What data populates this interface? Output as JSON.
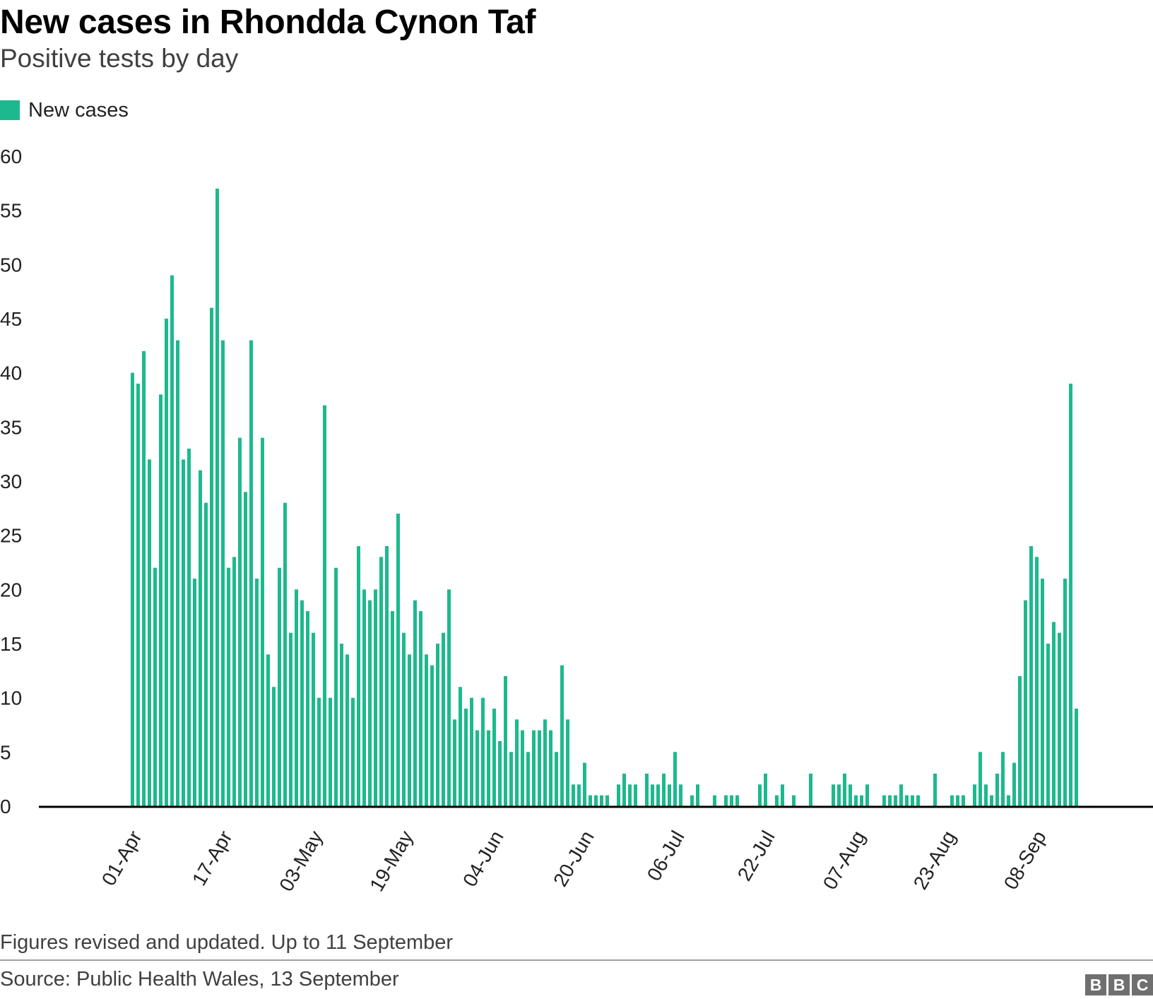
{
  "title": "New cases in Rhondda Cynon Taf",
  "subtitle": "Positive tests by day",
  "note": "Figures revised and updated. Up to 11 September",
  "source": "Source: Public Health Wales, 13 September",
  "logo": [
    "B",
    "B",
    "C"
  ],
  "colors": {
    "bar": "#1db98d",
    "axis": "#000000",
    "text": "#222222"
  },
  "chart_data": {
    "type": "bar",
    "series": [
      {
        "name": "New cases",
        "color": "#1db98d",
        "start_date": "01-Apr",
        "values": [
          40,
          39,
          42,
          32,
          22,
          38,
          45,
          49,
          43,
          32,
          33,
          21,
          31,
          28,
          46,
          57,
          43,
          22,
          23,
          34,
          29,
          43,
          21,
          34,
          14,
          11,
          22,
          28,
          16,
          20,
          19,
          18,
          16,
          10,
          37,
          10,
          22,
          15,
          14,
          10,
          24,
          20,
          19,
          20,
          23,
          24,
          18,
          27,
          16,
          14,
          19,
          18,
          14,
          13,
          15,
          16,
          20,
          8,
          11,
          9,
          10,
          7,
          10,
          7,
          9,
          6,
          12,
          5,
          8,
          7,
          5,
          7,
          7,
          8,
          7,
          5,
          13,
          8,
          2,
          2,
          4,
          1,
          1,
          1,
          1,
          0,
          2,
          3,
          2,
          2,
          0,
          3,
          2,
          2,
          3,
          2,
          5,
          2,
          0,
          1,
          2,
          0,
          0,
          1,
          0,
          1,
          1,
          1,
          0,
          0,
          0,
          2,
          3,
          0,
          1,
          2,
          0,
          1,
          0,
          0,
          3,
          0,
          0,
          0,
          2,
          2,
          3,
          2,
          1,
          1,
          2,
          0,
          0,
          1,
          1,
          1,
          2,
          1,
          1,
          1,
          0,
          0,
          3,
          0,
          0,
          1,
          1,
          1,
          0,
          2,
          5,
          2,
          1,
          3,
          5,
          1,
          4,
          12,
          19,
          24,
          23,
          21,
          15,
          17,
          16,
          21,
          39,
          9
        ]
      }
    ],
    "x_tick_labels": [
      "01-Apr",
      "17-Apr",
      "03-May",
      "19-May",
      "04-Jun",
      "20-Jun",
      "06-Jul",
      "22-Jul",
      "07-Aug",
      "23-Aug",
      "08-Sep"
    ],
    "x_tick_step_days": 16,
    "y_ticks": [
      0,
      5,
      10,
      15,
      20,
      25,
      30,
      35,
      40,
      45,
      50,
      55,
      60
    ],
    "ylim": [
      0,
      60
    ],
    "xlabel": "",
    "ylabel": "",
    "grid": false,
    "legend_position": "top-left"
  }
}
